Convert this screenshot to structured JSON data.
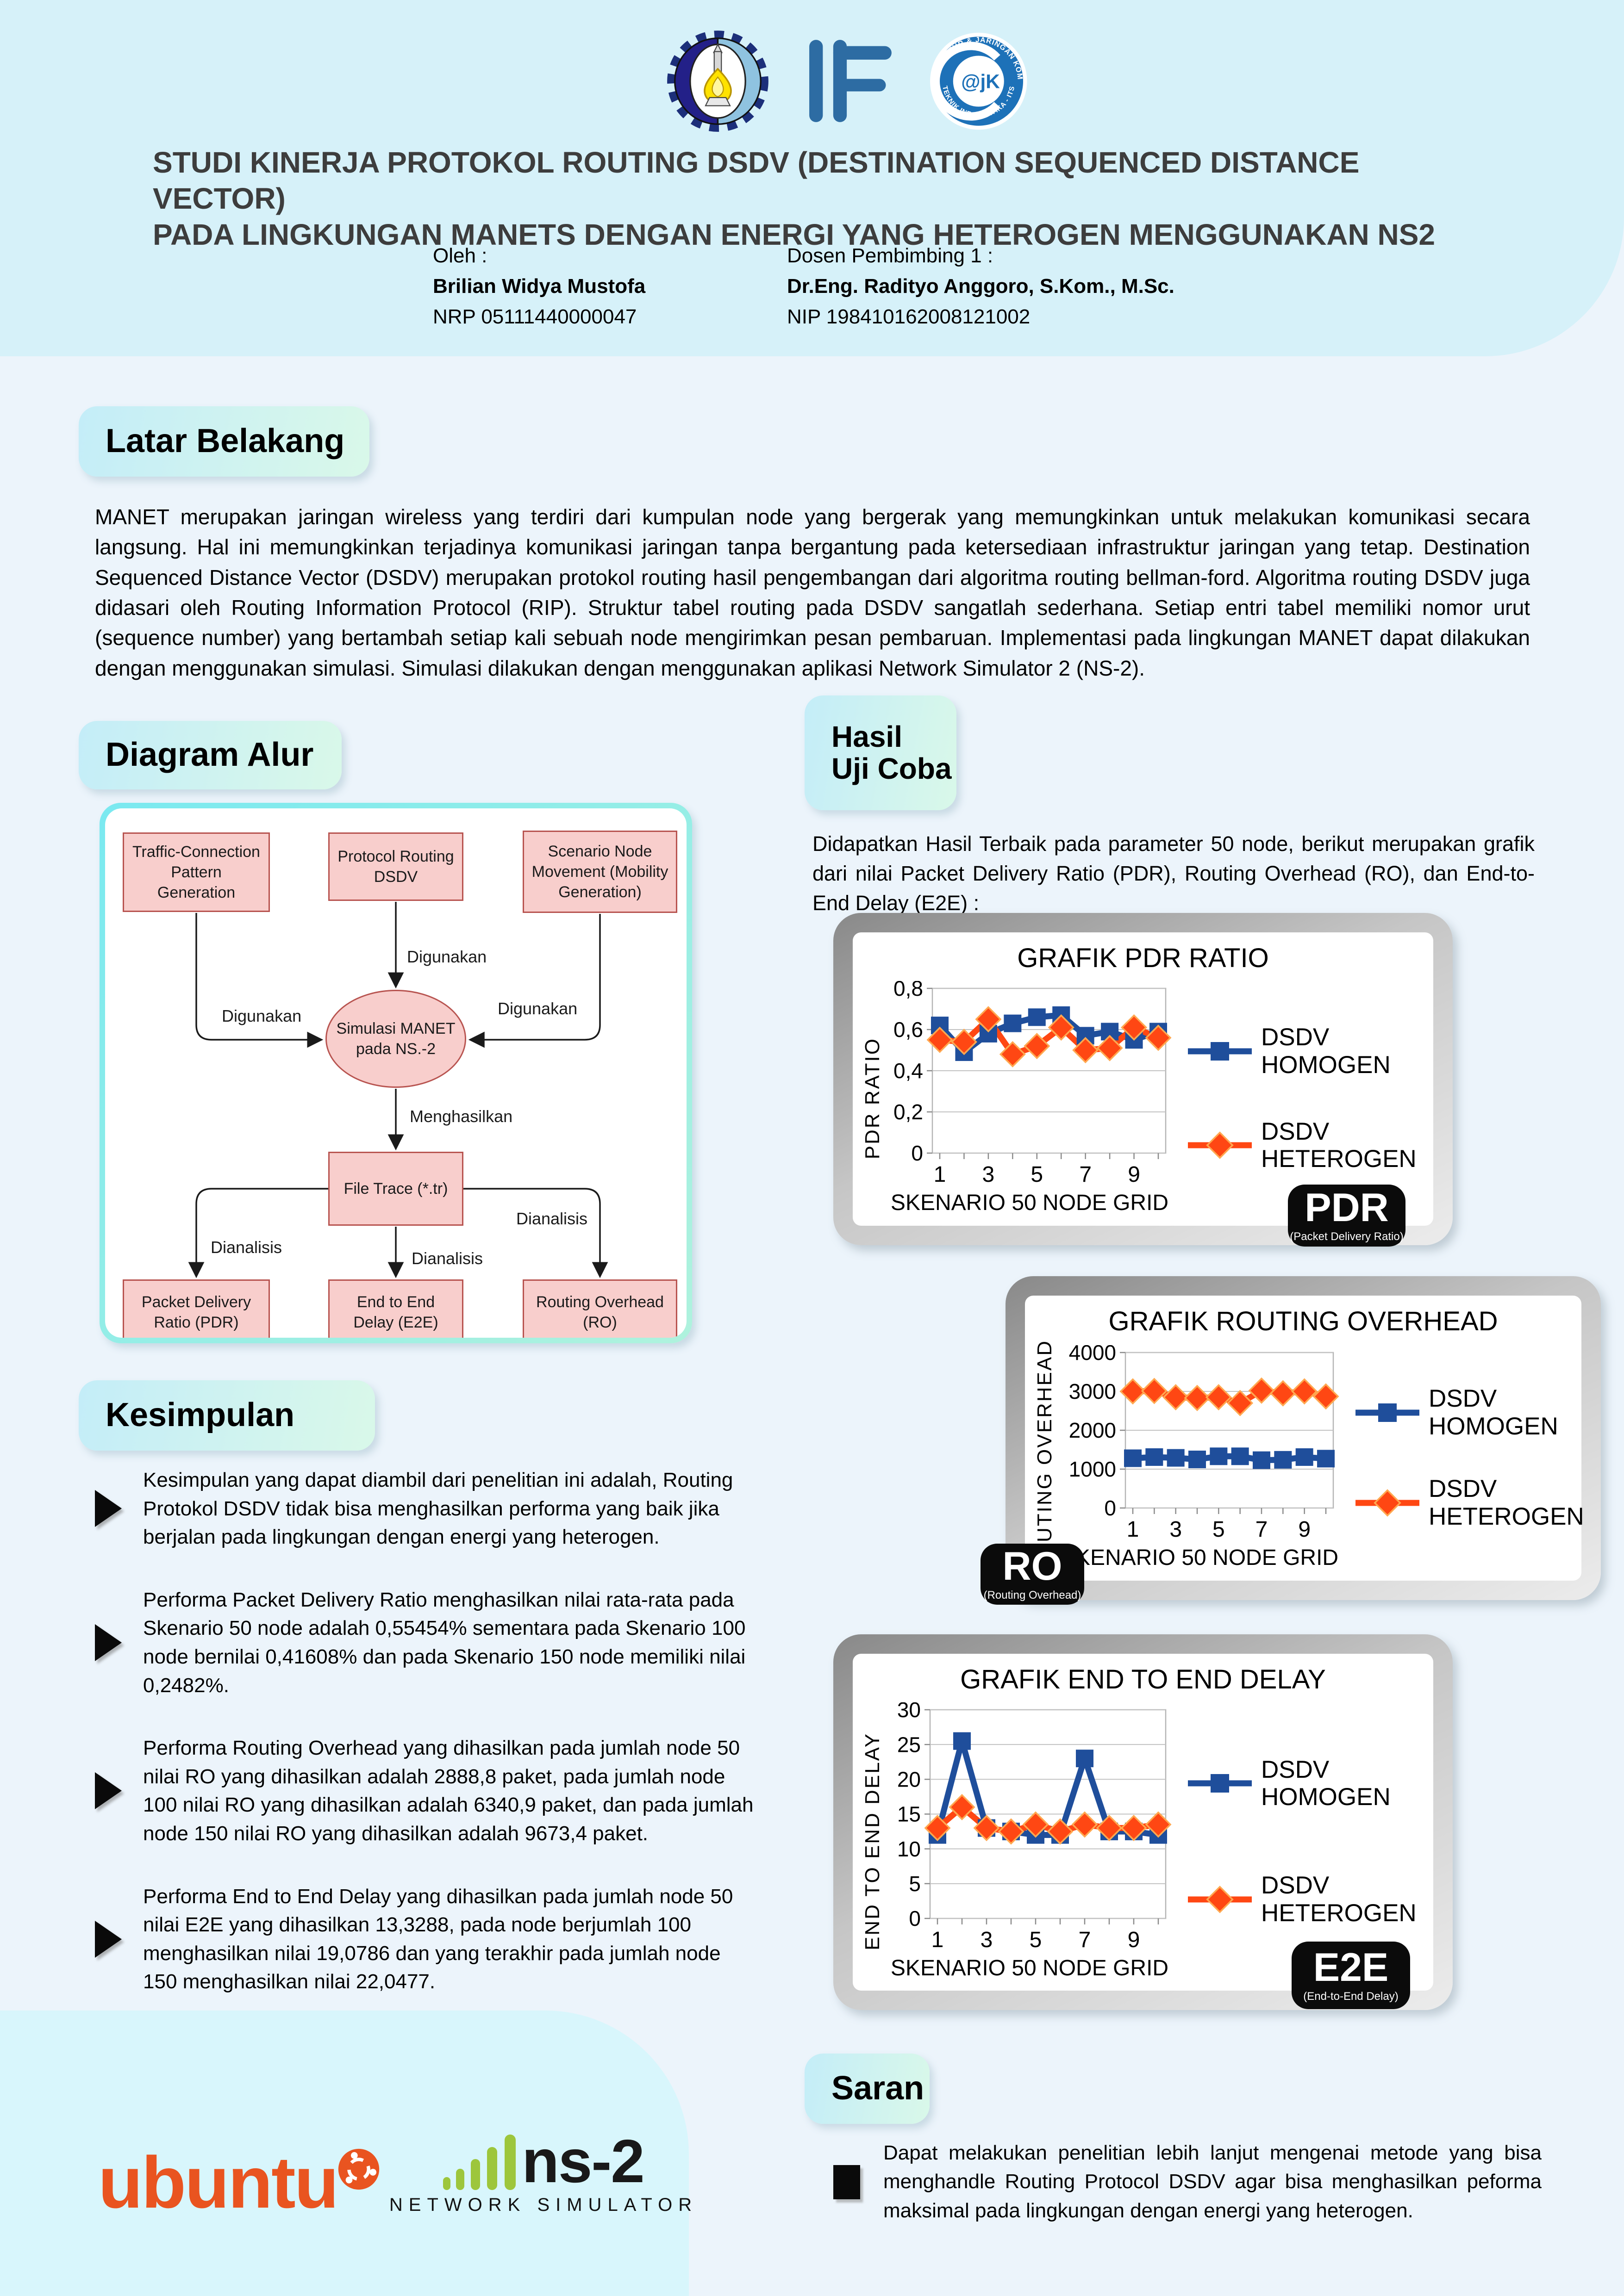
{
  "header": {
    "title_line1": "STUDI KINERJA PROTOKOL ROUTING DSDV (DESTINATION SEQUENCED DISTANCE VECTOR)",
    "title_line2": "PADA LINGKUNGAN MANETS DENGAN ENERGI YANG HETEROGEN MENGGUNAKAN NS2",
    "author_label": "Oleh :",
    "author_name": "Brilian Widya Mustofa",
    "author_nrp": "NRP 05111440000047",
    "advisor_label": "Dosen Pembimbing 1 :",
    "advisor_name": "Dr.Eng. Radityo Anggoro, S.Kom., M.Sc.",
    "advisor_nip": "NIP 198410162008121002",
    "if_logo_text": "IF",
    "ajk_center": "@jK",
    "ajk_text_top": "LAB. ARSITEKTUR & JARINGAN KOMPUTER",
    "ajk_text_bottom": "TEKNIK INFORMATIKA - ITS"
  },
  "sections": {
    "latar_heading": "Latar Belakang",
    "latar_body": "MANET merupakan jaringan wireless yang terdiri dari kumpulan node yang bergerak yang memungkinkan untuk melakukan komunikasi secara langsung. Hal ini memungkinkan terjadinya komunikasi jaringan tanpa bergantung pada ketersediaan infrastruktur jaringan yang tetap. Destination Sequenced Distance Vector (DSDV) merupakan protokol routing hasil pengembangan dari algoritma routing bellman-ford. Algoritma routing DSDV juga didasari oleh Routing Information Protocol (RIP). Struktur tabel routing pada DSDV sangatlah sederhana. Setiap entri tabel memiliki nomor urut (sequence number) yang bertambah setiap kali sebuah node mengirimkan pesan pembaruan. Implementasi pada lingkungan MANET dapat dilakukan dengan menggunakan simulasi. Simulasi dilakukan dengan menggunakan aplikasi Network Simulator 2 (NS-2).",
    "diagram_heading": "Diagram Alur",
    "hasil_heading_line1": "Hasil",
    "hasil_heading_line2": "Uji Coba",
    "hasil_body": "Didapatkan Hasil Terbaik pada parameter 50 node, berikut merupakan grafik dari nilai Packet Delivery Ratio (PDR), Routing Overhead (RO), dan End-to-End Delay (E2E) :",
    "kesimpulan_heading": "Kesimpulan",
    "saran_heading": "Saran",
    "saran_body": "Dapat melakukan penelitian lebih lanjut mengenai metode yang bisa menghandle Routing Protocol DSDV agar bisa menghasilkan peforma maksimal pada lingkungan dengan energi yang heterogen."
  },
  "kesimpulan_bullets": [
    "Kesimpulan yang dapat diambil dari penelitian ini adalah, Routing Protokol DSDV tidak bisa menghasilkan performa yang baik jika berjalan pada lingkungan dengan energi yang heterogen.",
    "Performa Packet Delivery Ratio menghasilkan nilai rata-rata pada Skenario 50 node adalah 0,55454% sementara pada Skenario 100 node bernilai 0,41608% dan pada Skenario 150 node memiliki nilai 0,2482%.",
    "Performa Routing Overhead yang dihasilkan pada jumlah node 50 nilai RO yang dihasilkan adalah 2888,8 paket, pada jumlah node 100 nilai RO yang dihasilkan adalah 6340,9 paket, dan pada jumlah node 150 nilai RO yang dihasilkan adalah 9673,4 paket.",
    "Performa End to End Delay yang dihasilkan pada jumlah node 50 nilai E2E yang dihasilkan 13,3288, pada node berjumlah 100 menghasilkan nilai 19,0786 dan yang terakhir pada jumlah node 150 menghasilkan nilai 22,0477."
  ],
  "diagram": {
    "node_traffic": "Traffic-Connection Pattern Generation",
    "node_protocol": "Protocol Routing DSDV",
    "node_scenario": "Scenario Node Movement (Mobility Generation)",
    "node_simulasi": "Simulasi MANET pada NS.-2",
    "node_filetrace": "File Trace (*.tr)",
    "node_pdr": "Packet Delivery Ratio (PDR)",
    "node_e2e": "End to End Delay (E2E)",
    "node_ro": "Routing Overhead (RO)",
    "label_digunakan_left": "Digunakan",
    "label_digunakan_center": "Digunakan",
    "label_digunakan_right": "Digunakan",
    "label_menghasilkan": "Menghasilkan",
    "label_dianalisis_left": "Dianalisis",
    "label_dianalisis_center": "Dianalisis",
    "label_dianalisis_right": "Dianalisis"
  },
  "badges": [
    {
      "code": "PDR",
      "subtitle": "(Packet Delivery Ratio)"
    },
    {
      "code": "RO",
      "subtitle": "(Routing Overhead)"
    },
    {
      "code": "E2E",
      "subtitle": "(End-to-End Delay)"
    }
  ],
  "chart_data": [
    {
      "type": "line",
      "title": "GRAFIK PDR RATIO",
      "xlabel": "SKENARIO 50 NODE GRID",
      "ylabel": "PDR RATIO",
      "x": [
        1,
        2,
        3,
        4,
        5,
        6,
        7,
        8,
        9,
        10
      ],
      "ylim": [
        0,
        0.8
      ],
      "y_ticks": [
        0,
        0.2,
        0.4,
        0.6,
        0.8
      ],
      "y_tick_labels": [
        "0",
        "0,2",
        "0,4",
        "0,6",
        "0,8"
      ],
      "grid": true,
      "legend_position": "right",
      "series": [
        {
          "name": "DSDV HOMOGEN",
          "color": "#1F4E9B",
          "marker": "square",
          "values": [
            0.62,
            0.49,
            0.58,
            0.63,
            0.66,
            0.67,
            0.57,
            0.59,
            0.55,
            0.59
          ]
        },
        {
          "name": "DSDV HETEROGEN",
          "color": "#FF4713",
          "marker": "diamond",
          "values": [
            0.55,
            0.54,
            0.65,
            0.48,
            0.52,
            0.61,
            0.5,
            0.51,
            0.61,
            0.56
          ]
        }
      ]
    },
    {
      "type": "line",
      "title": "GRAFIK ROUTING OVERHEAD",
      "xlabel": "SKENARIO 50 NODE GRID",
      "ylabel": "ROUTING OVERHEAD",
      "x": [
        1,
        2,
        3,
        4,
        5,
        6,
        7,
        8,
        9,
        10
      ],
      "ylim": [
        0,
        4000
      ],
      "y_ticks": [
        0,
        1000,
        2000,
        3000,
        4000
      ],
      "y_tick_labels": [
        "0",
        "1000",
        "2000",
        "3000",
        "4000"
      ],
      "grid": true,
      "legend_position": "right",
      "series": [
        {
          "name": "DSDV HOMOGEN",
          "color": "#1F4E9B",
          "marker": "square",
          "values": [
            1280,
            1310,
            1290,
            1250,
            1330,
            1330,
            1230,
            1240,
            1310,
            1270
          ]
        },
        {
          "name": "DSDV HETEROGEN",
          "color": "#FF4713",
          "marker": "diamond",
          "values": [
            3000,
            3010,
            2850,
            2830,
            2850,
            2700,
            3020,
            2950,
            3000,
            2870
          ]
        }
      ]
    },
    {
      "type": "line",
      "title": "GRAFIK END TO END DELAY",
      "xlabel": "SKENARIO 50 NODE GRID",
      "ylabel": "END TO END DELAY",
      "x": [
        1,
        2,
        3,
        4,
        5,
        6,
        7,
        8,
        9,
        10
      ],
      "ylim": [
        0,
        30
      ],
      "y_ticks": [
        0,
        5,
        10,
        15,
        20,
        25,
        30
      ],
      "y_tick_labels": [
        "0",
        "5",
        "10",
        "15",
        "20",
        "25",
        "30"
      ],
      "grid": true,
      "legend_position": "right",
      "series": [
        {
          "name": "DSDV HOMOGEN",
          "color": "#1F4E9B",
          "marker": "square",
          "values": [
            12,
            25.5,
            13,
            12.5,
            12,
            12,
            23,
            12.5,
            12.5,
            12
          ]
        },
        {
          "name": "DSDV HETEROGEN",
          "color": "#FF4713",
          "marker": "diamond",
          "values": [
            13,
            16,
            13,
            12.5,
            13.5,
            12.5,
            13.5,
            13,
            13,
            13.5
          ]
        }
      ]
    }
  ],
  "footer": {
    "ubuntu_text": "ubuntu",
    "ns2_text": "ns-2",
    "ns2_subtitle": "NETWORK SIMULATOR"
  }
}
